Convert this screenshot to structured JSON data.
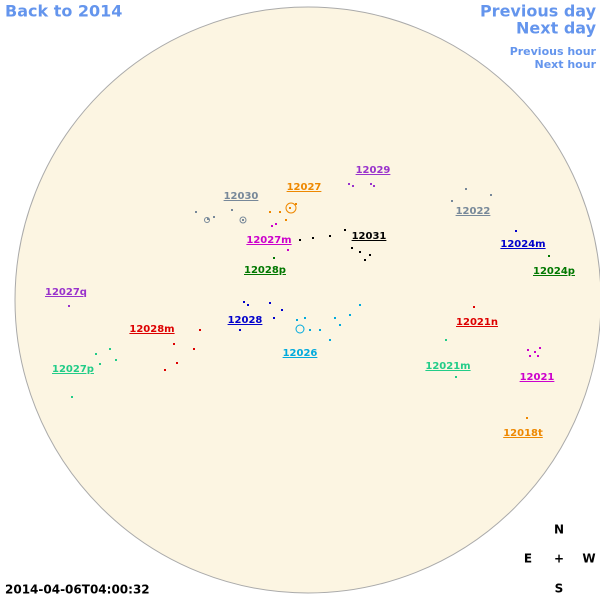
{
  "navigation": {
    "back": "Back to 2014",
    "previous_day": "Previous day",
    "next_day": "Next day",
    "previous_hour": "Previous hour",
    "next_hour": "Next hour"
  },
  "timestamp": "2014-04-06T04:00:32",
  "compass": {
    "north": "N",
    "east": "E",
    "center": "+",
    "west": "W",
    "south": "S"
  },
  "regions": [
    {
      "label": "12029",
      "color": "#9933cc"
    },
    {
      "label": "12027",
      "color": "#ee8800"
    },
    {
      "label": "12030",
      "color": "#778899"
    },
    {
      "label": "12022",
      "color": "#778899"
    },
    {
      "label": "12027m",
      "color": "#cc00cc"
    },
    {
      "label": "12031",
      "color": "#000000"
    },
    {
      "label": "12024m",
      "color": "#0000cc"
    },
    {
      "label": "12028p",
      "color": "#007700"
    },
    {
      "label": "12024p",
      "color": "#007700"
    },
    {
      "label": "12027q",
      "color": "#9933cc"
    },
    {
      "label": "12028",
      "color": "#0000cc"
    },
    {
      "label": "12021n",
      "color": "#dd0000"
    },
    {
      "label": "12028m",
      "color": "#dd0000"
    },
    {
      "label": "12026",
      "color": "#00aadd"
    },
    {
      "label": "12021m",
      "color": "#22cc88"
    },
    {
      "label": "12027p",
      "color": "#22cc88"
    },
    {
      "label": "12021",
      "color": "#cc00cc"
    },
    {
      "label": "12018t",
      "color": "#ee8800"
    }
  ]
}
